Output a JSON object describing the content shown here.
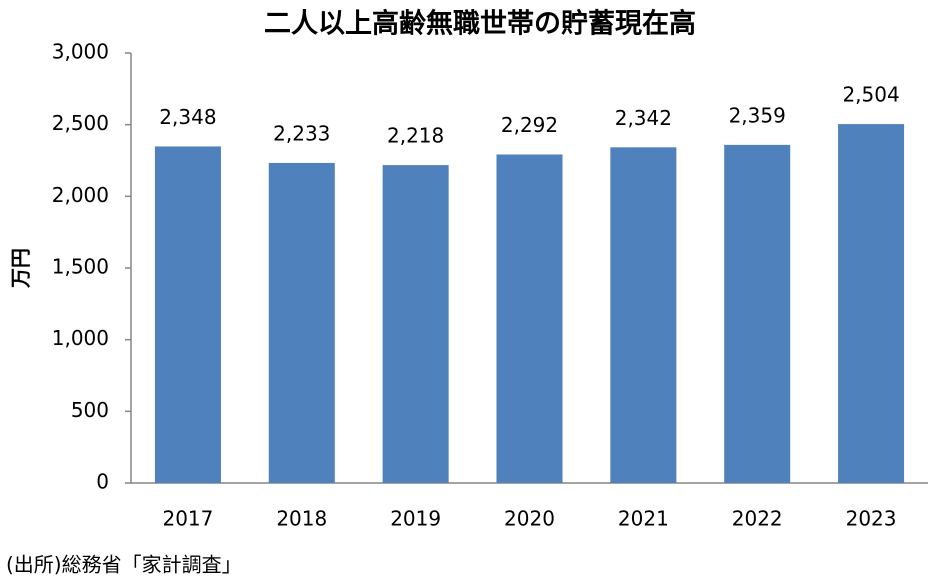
{
  "chart_data": {
    "type": "bar",
    "title": "二人以上高齢無職世帯の貯蓄現在高",
    "y_label": "万円",
    "note": "(出所)総務省「家計調査」",
    "categories": [
      "2017",
      "2018",
      "2019",
      "2020",
      "2021",
      "2022",
      "2023"
    ],
    "values": [
      2348,
      2233,
      2218,
      2292,
      2342,
      2359,
      2504
    ],
    "value_labels": [
      "2,348",
      "2,233",
      "2,218",
      "2,292",
      "2,342",
      "2,359",
      "2,504"
    ],
    "color": "#4f81bd",
    "ylim": [
      0,
      3000
    ],
    "yticks": [
      0,
      500,
      {
        "value": 1000,
        "label": "1,000"
      },
      {
        "value": 1500,
        "label": "1,500"
      },
      {
        "value": 2000,
        "label": "2,000"
      },
      {
        "value": 2500,
        "label": "2,500"
      },
      {
        "value": 3000,
        "label": "3,000"
      }
    ],
    "grid": false
  }
}
